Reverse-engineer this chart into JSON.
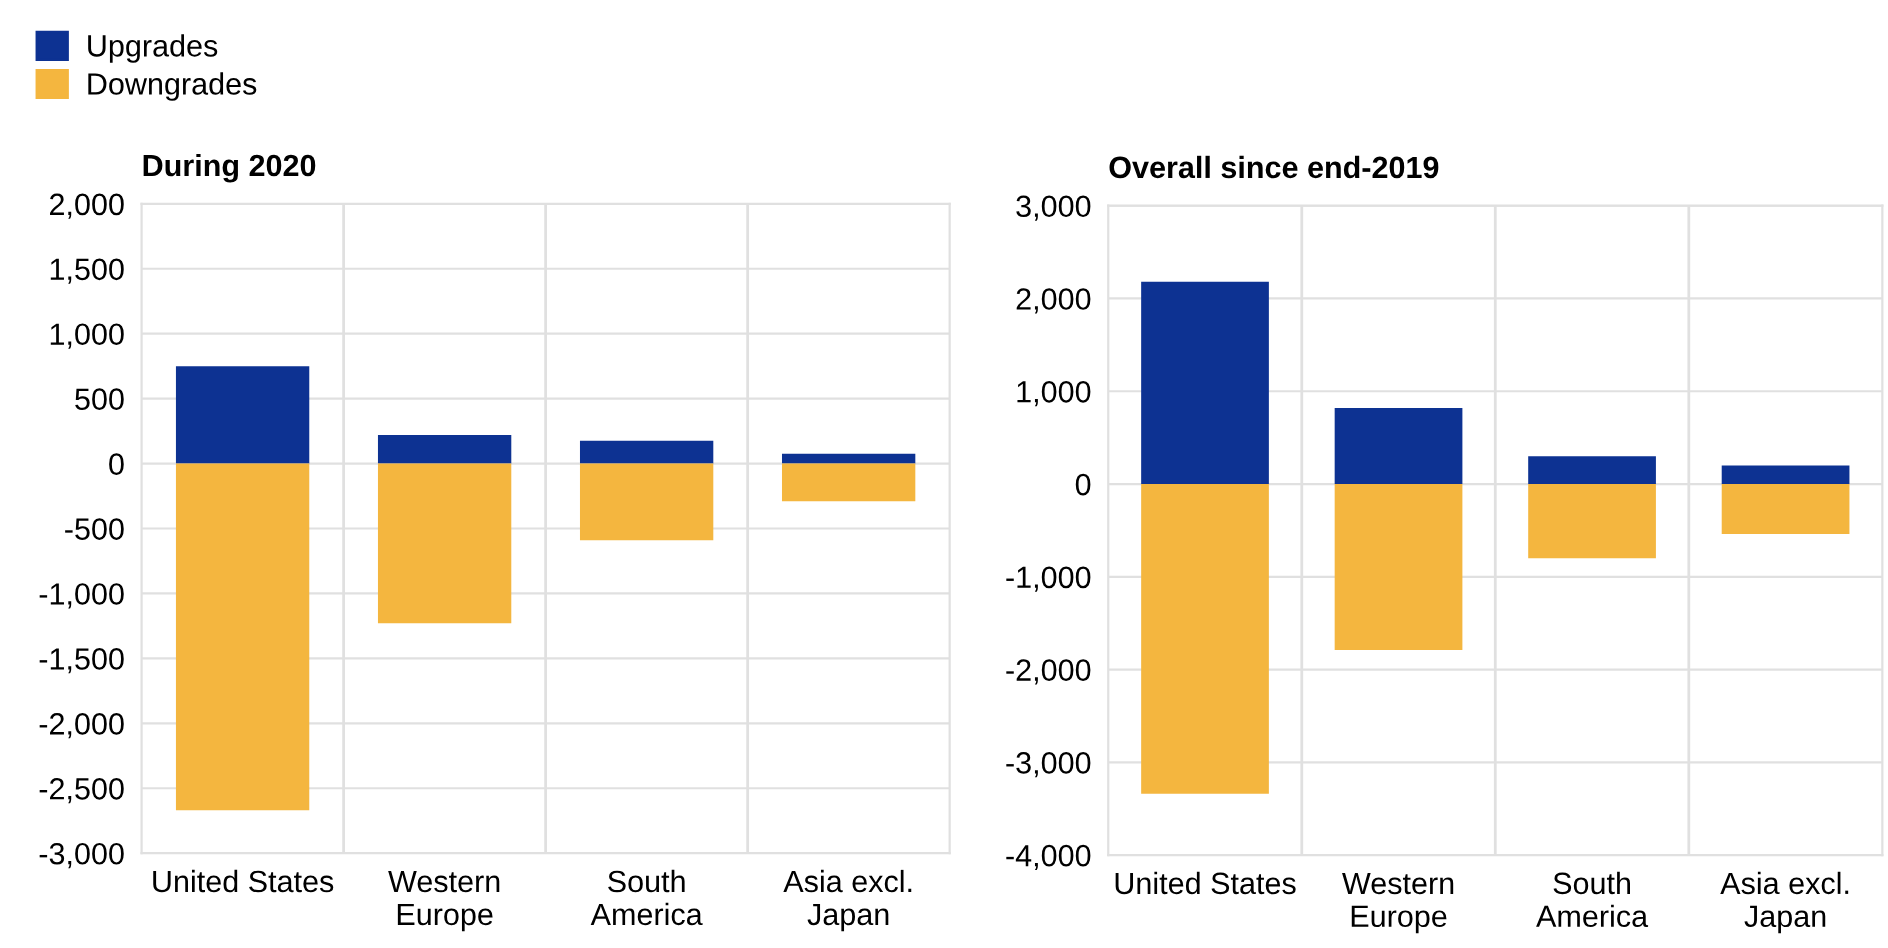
{
  "chart_data": [
    {
      "type": "bar",
      "title": "During 2020",
      "categories": [
        "United States",
        "Western\nEurope",
        "South\nAmerica",
        "Asia excl.\nJapan"
      ],
      "stacked": true,
      "legend": "top left",
      "grid": true,
      "series": [
        {
          "name": "Upgrades",
          "color": "#0d3292",
          "values": [
            750,
            220,
            175,
            75
          ]
        },
        {
          "name": "Downgrades",
          "color": "#f4b63f",
          "values": [
            -2670,
            -1230,
            -590,
            -290
          ]
        }
      ],
      "ylim": [
        -3000,
        2000
      ],
      "yticks": [
        {
          "value": -3000,
          "label": "-3,000"
        },
        {
          "value": -2500,
          "label": "-2,500"
        },
        {
          "value": -2000,
          "label": "-2,000"
        },
        {
          "value": -1500,
          "label": "-1,500"
        },
        {
          "value": -1000,
          "label": "-1,000"
        },
        {
          "value": -500,
          "label": "-500"
        },
        0,
        500,
        {
          "value": 1000,
          "label": "1,000"
        },
        {
          "value": 1500,
          "label": "1,500"
        },
        {
          "value": 2000,
          "label": "2,000"
        }
      ]
    },
    {
      "type": "bar",
      "title": "Overall since end-2019",
      "categories": [
        "United States",
        "Western\nEurope",
        "South\nAmerica",
        "Asia excl.\nJapan"
      ],
      "stacked": true,
      "grid": true,
      "series": [
        {
          "color": "#0d3292",
          "values": [
            2180,
            820,
            300,
            200
          ]
        },
        {
          "color": "#f4b63f",
          "values": [
            -3340,
            -1790,
            -800,
            -540
          ]
        }
      ],
      "ylim": [
        -4000,
        3000
      ],
      "yticks": [
        {
          "value": -4000,
          "label": "-4,000"
        },
        {
          "value": -3000,
          "label": "-3,000"
        },
        {
          "value": -2000,
          "label": "-2,000"
        },
        {
          "value": -1000,
          "label": "-1,000"
        },
        0,
        {
          "value": 1000,
          "label": "1,000"
        },
        {
          "value": 2000,
          "label": "2,000"
        },
        {
          "value": 3000,
          "label": "3,000"
        }
      ]
    }
  ]
}
